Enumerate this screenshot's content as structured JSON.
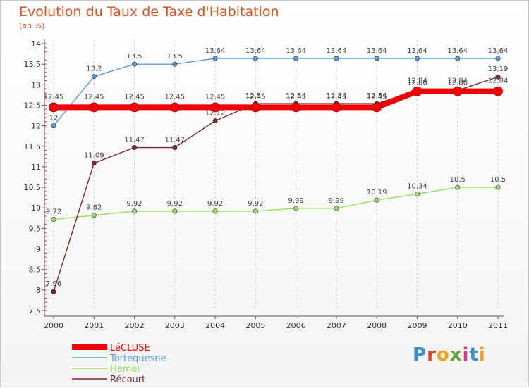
{
  "logo_text": "Proxiti",
  "chart_data": {
    "type": "line",
    "title": "Evolution du Taux de Taxe d'Habitation",
    "subtitle": "(en %)",
    "x": [
      "2000",
      "2001",
      "2002",
      "2003",
      "2004",
      "2005",
      "2006",
      "2007",
      "2008",
      "2009",
      "2010",
      "2011"
    ],
    "ylim": [
      7.5,
      14
    ],
    "yticks": [
      "7.5",
      "8",
      "8.5",
      "9",
      "9.5",
      "10",
      "10.5",
      "11",
      "11.5",
      "12",
      "12.5",
      "13",
      "13.5",
      "14"
    ],
    "grid": "vertical dashed",
    "legend_position": "bottom-left",
    "series": [
      {
        "name": "LéCLUSE",
        "color": "#ee0000",
        "values": [
          12.45,
          12.45,
          12.45,
          12.45,
          12.45,
          12.45,
          12.45,
          12.45,
          12.45,
          12.84,
          12.84,
          12.84
        ],
        "labels": [
          "12.45",
          "12.45",
          "12.45",
          "12.45",
          "12.45",
          "12.45",
          "12.45",
          "12.45",
          "12.45",
          "12.84",
          "12.84",
          "12.84"
        ]
      },
      {
        "name": "Tortequesne",
        "color": "#5b9bd5",
        "values": [
          12,
          13.2,
          13.5,
          13.5,
          13.64,
          13.64,
          13.64,
          13.64,
          13.64,
          13.64,
          13.64,
          13.64
        ],
        "labels": [
          "12",
          "13.2",
          "13.5",
          "13.5",
          "13.64",
          "13.64",
          "13.64",
          "13.64",
          "13.64",
          "13.64",
          "13.64",
          "13.64"
        ]
      },
      {
        "name": "Hamel",
        "color": "#99dd66",
        "values": [
          9.72,
          9.82,
          9.92,
          9.92,
          9.92,
          9.92,
          9.99,
          9.99,
          10.19,
          10.34,
          10.5,
          10.5
        ],
        "labels": [
          "9.72",
          "9.82",
          "9.92",
          "9.92",
          "9.92",
          "9.92",
          "9.99",
          "9.99",
          "10.19",
          "10.34",
          "10.5",
          "10.5"
        ]
      },
      {
        "name": "Récourt",
        "color": "#7a2a2a",
        "values": [
          7.96,
          11.09,
          11.47,
          11.47,
          12.12,
          12.54,
          12.54,
          12.54,
          12.54,
          12.86,
          12.86,
          13.19
        ],
        "labels": [
          "7.96",
          "11.09",
          "11.47",
          "11.47",
          "12.12",
          "12.54",
          "12.54",
          "12.54",
          "12.54",
          "12.86",
          "12.86",
          "13.19"
        ]
      }
    ]
  }
}
